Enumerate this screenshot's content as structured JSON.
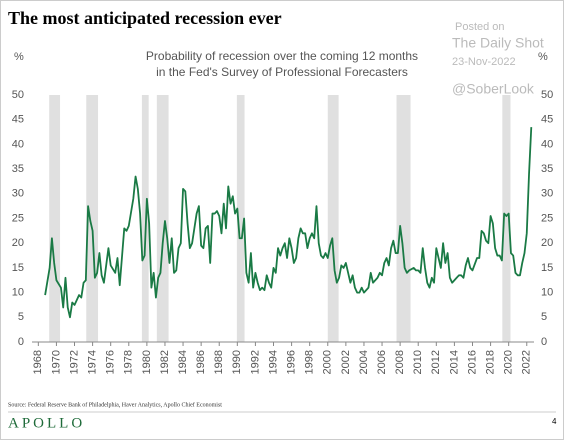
{
  "chart_data": {
    "type": "line",
    "title": "The most anticipated recession ever",
    "subtitle": [
      "Probability of recession over the coming 12 months",
      "in the Fed's Survey of Professional Forecasters"
    ],
    "y_label": "%",
    "y2_label": "%",
    "x": [
      1968.75,
      1969.25,
      1969.5,
      1969.75,
      1970,
      1970.5,
      1970.75,
      1971,
      1971.25,
      1971.5,
      1971.75,
      1972,
      1972.5,
      1972.75,
      1973,
      1973.25,
      1973.5,
      1973.75,
      1974,
      1974.25,
      1974.5,
      1974.75,
      1975,
      1975.25,
      1975.75,
      1976,
      1976.5,
      1976.75,
      1977,
      1977.5,
      1977.75,
      1978,
      1978.5,
      1978.75,
      1979,
      1979.25,
      1979.5,
      1979.75,
      1980,
      1980.25,
      1980.5,
      1980.75,
      1981,
      1981.25,
      1981.5,
      1981.75,
      1982,
      1982.25,
      1982.5,
      1982.75,
      1983,
      1983.25,
      1983.5,
      1983.75,
      1984,
      1984.25,
      1984.5,
      1984.75,
      1985,
      1985.25,
      1985.5,
      1985.75,
      1986,
      1986.25,
      1986.5,
      1986.75,
      1987,
      1987.25,
      1987.5,
      1987.75,
      1988,
      1988.25,
      1988.5,
      1988.75,
      1989,
      1989.25,
      1989.5,
      1989.75,
      1990,
      1990.25,
      1990.5,
      1990.75,
      1991,
      1991.25,
      1991.5,
      1991.75,
      1992,
      1992.25,
      1992.5,
      1992.75,
      1993,
      1993.25,
      1993.5,
      1993.75,
      1994,
      1994.25,
      1994.5,
      1994.75,
      1995,
      1995.25,
      1995.5,
      1995.75,
      1996,
      1996.25,
      1996.5,
      1996.75,
      1997,
      1997.25,
      1997.5,
      1997.75,
      1998,
      1998.25,
      1998.5,
      1998.75,
      1999,
      1999.25,
      1999.5,
      1999.75,
      2000,
      2000.25,
      2000.5,
      2000.75,
      2001,
      2001.25,
      2001.5,
      2001.75,
      2002,
      2002.25,
      2002.5,
      2002.75,
      2003,
      2003.25,
      2003.5,
      2003.75,
      2004,
      2004.5,
      2004.75,
      2005,
      2005.5,
      2005.75,
      2006,
      2006.25,
      2006.5,
      2006.75,
      2007,
      2007.25,
      2007.5,
      2007.75,
      2008,
      2008.25,
      2008.5,
      2008.75,
      2009,
      2009.5,
      2009.75,
      2010,
      2010.25,
      2010.5,
      2010.75,
      2011,
      2011.25,
      2011.5,
      2011.75,
      2012,
      2012.25,
      2012.5,
      2012.75,
      2013,
      2013.25,
      2013.5,
      2013.75,
      2014,
      2014.25,
      2014.5,
      2014.75,
      2015,
      2015.25,
      2015.5,
      2015.75,
      2016,
      2016.5,
      2016.75,
      2017,
      2017.25,
      2017.5,
      2017.75,
      2018,
      2018.25,
      2018.5,
      2018.75,
      2019,
      2019.25,
      2019.5,
      2019.75,
      2020,
      2020.25,
      2020.5,
      2020.75,
      2021,
      2021.25,
      2021.5,
      2021.75,
      2022,
      2022.25,
      2022.5
    ],
    "series": [
      {
        "name": "Probability of recession",
        "color": "#1a7a45",
        "values": [
          9.5,
          15,
          21,
          16,
          12.5,
          11,
          7,
          13,
          7,
          5,
          8,
          7.5,
          9.5,
          9,
          12,
          12.5,
          27.5,
          24.5,
          22.5,
          13,
          14,
          18,
          13.5,
          12,
          19,
          15.5,
          14,
          17,
          11.5,
          23,
          22.5,
          23.5,
          29,
          33.5,
          31,
          26,
          16.5,
          17.5,
          29,
          24,
          11,
          14,
          9,
          13,
          14,
          20,
          24.5,
          21,
          16,
          21,
          14,
          14.5,
          19,
          20,
          31,
          30.5,
          24,
          19,
          20,
          23,
          26,
          27.5,
          19.5,
          19,
          23,
          23.5,
          16,
          26,
          26,
          26.5,
          25.5,
          22,
          28,
          23,
          31.5,
          28,
          29.5,
          26,
          27,
          21,
          21,
          25,
          14,
          12,
          18,
          11,
          14,
          12,
          10.5,
          11,
          10.5,
          13.5,
          12,
          11,
          15,
          14,
          19,
          17.5,
          19,
          20,
          17,
          21,
          19,
          16,
          17,
          21,
          23,
          22,
          22,
          19,
          21,
          22,
          21,
          27.5,
          20,
          17.5,
          17,
          18,
          17,
          19.5,
          21,
          14.5,
          12,
          13,
          15.5,
          15,
          16,
          14,
          12,
          13.5,
          11,
          10,
          10,
          11,
          10,
          11,
          14,
          12,
          13,
          14,
          13.5,
          16,
          17,
          15.5,
          19,
          20.5,
          18,
          18,
          23.5,
          20,
          15,
          14,
          14.5,
          15,
          14.5,
          14.5,
          14,
          19,
          15,
          12,
          11,
          13,
          12,
          19,
          17,
          15,
          20,
          16,
          18,
          13,
          12,
          12.5,
          13,
          13.5,
          13.5,
          13,
          15.5,
          17,
          15,
          14.5,
          17,
          17,
          22.5,
          22,
          20.5,
          20,
          25.5,
          24,
          19,
          17.5,
          17.5,
          16.5,
          26,
          25.5,
          26,
          18,
          17.5,
          14,
          13.5,
          13.5,
          16,
          18,
          22,
          34,
          43.5
        ]
      }
    ],
    "recessions": [
      [
        1969.2,
        1970.4
      ],
      [
        1973.3,
        1974.6
      ],
      [
        1979.45,
        1980.2
      ],
      [
        1981.1,
        1982.4
      ],
      [
        1989.95,
        1990.8
      ],
      [
        2000.0,
        2001.2
      ],
      [
        2007.6,
        2009.15
      ],
      [
        2019.3,
        2020.2
      ]
    ],
    "xlim": [
      1967.3,
      2022.8
    ],
    "xticks": [
      1968,
      1970,
      1972,
      1974,
      1976,
      1978,
      1980,
      1982,
      1984,
      1986,
      1988,
      1990,
      1992,
      1994,
      1996,
      1998,
      2000,
      2002,
      2004,
      2006,
      2008,
      2010,
      2012,
      2014,
      2016,
      2018,
      2020,
      2022
    ],
    "ylim": [
      0,
      50
    ],
    "yticks": [
      0,
      5,
      10,
      15,
      20,
      25,
      30,
      35,
      40,
      45,
      50
    ],
    "y2lim": [
      0,
      50
    ],
    "y2ticks": [
      0,
      5,
      10,
      15,
      20,
      25,
      30,
      35,
      40,
      45,
      50
    ],
    "recession_color": "#e0e0e0"
  },
  "watermark": [
    "Posted on",
    "The Daily Shot",
    "23-Nov-2022",
    "@SoberLook"
  ],
  "footer": {
    "source": "Source: Federal Reserve Bank of Philadelphia, Haver Analytics, Apollo Chief Economist",
    "logo": "APOLLO",
    "page": "4"
  }
}
